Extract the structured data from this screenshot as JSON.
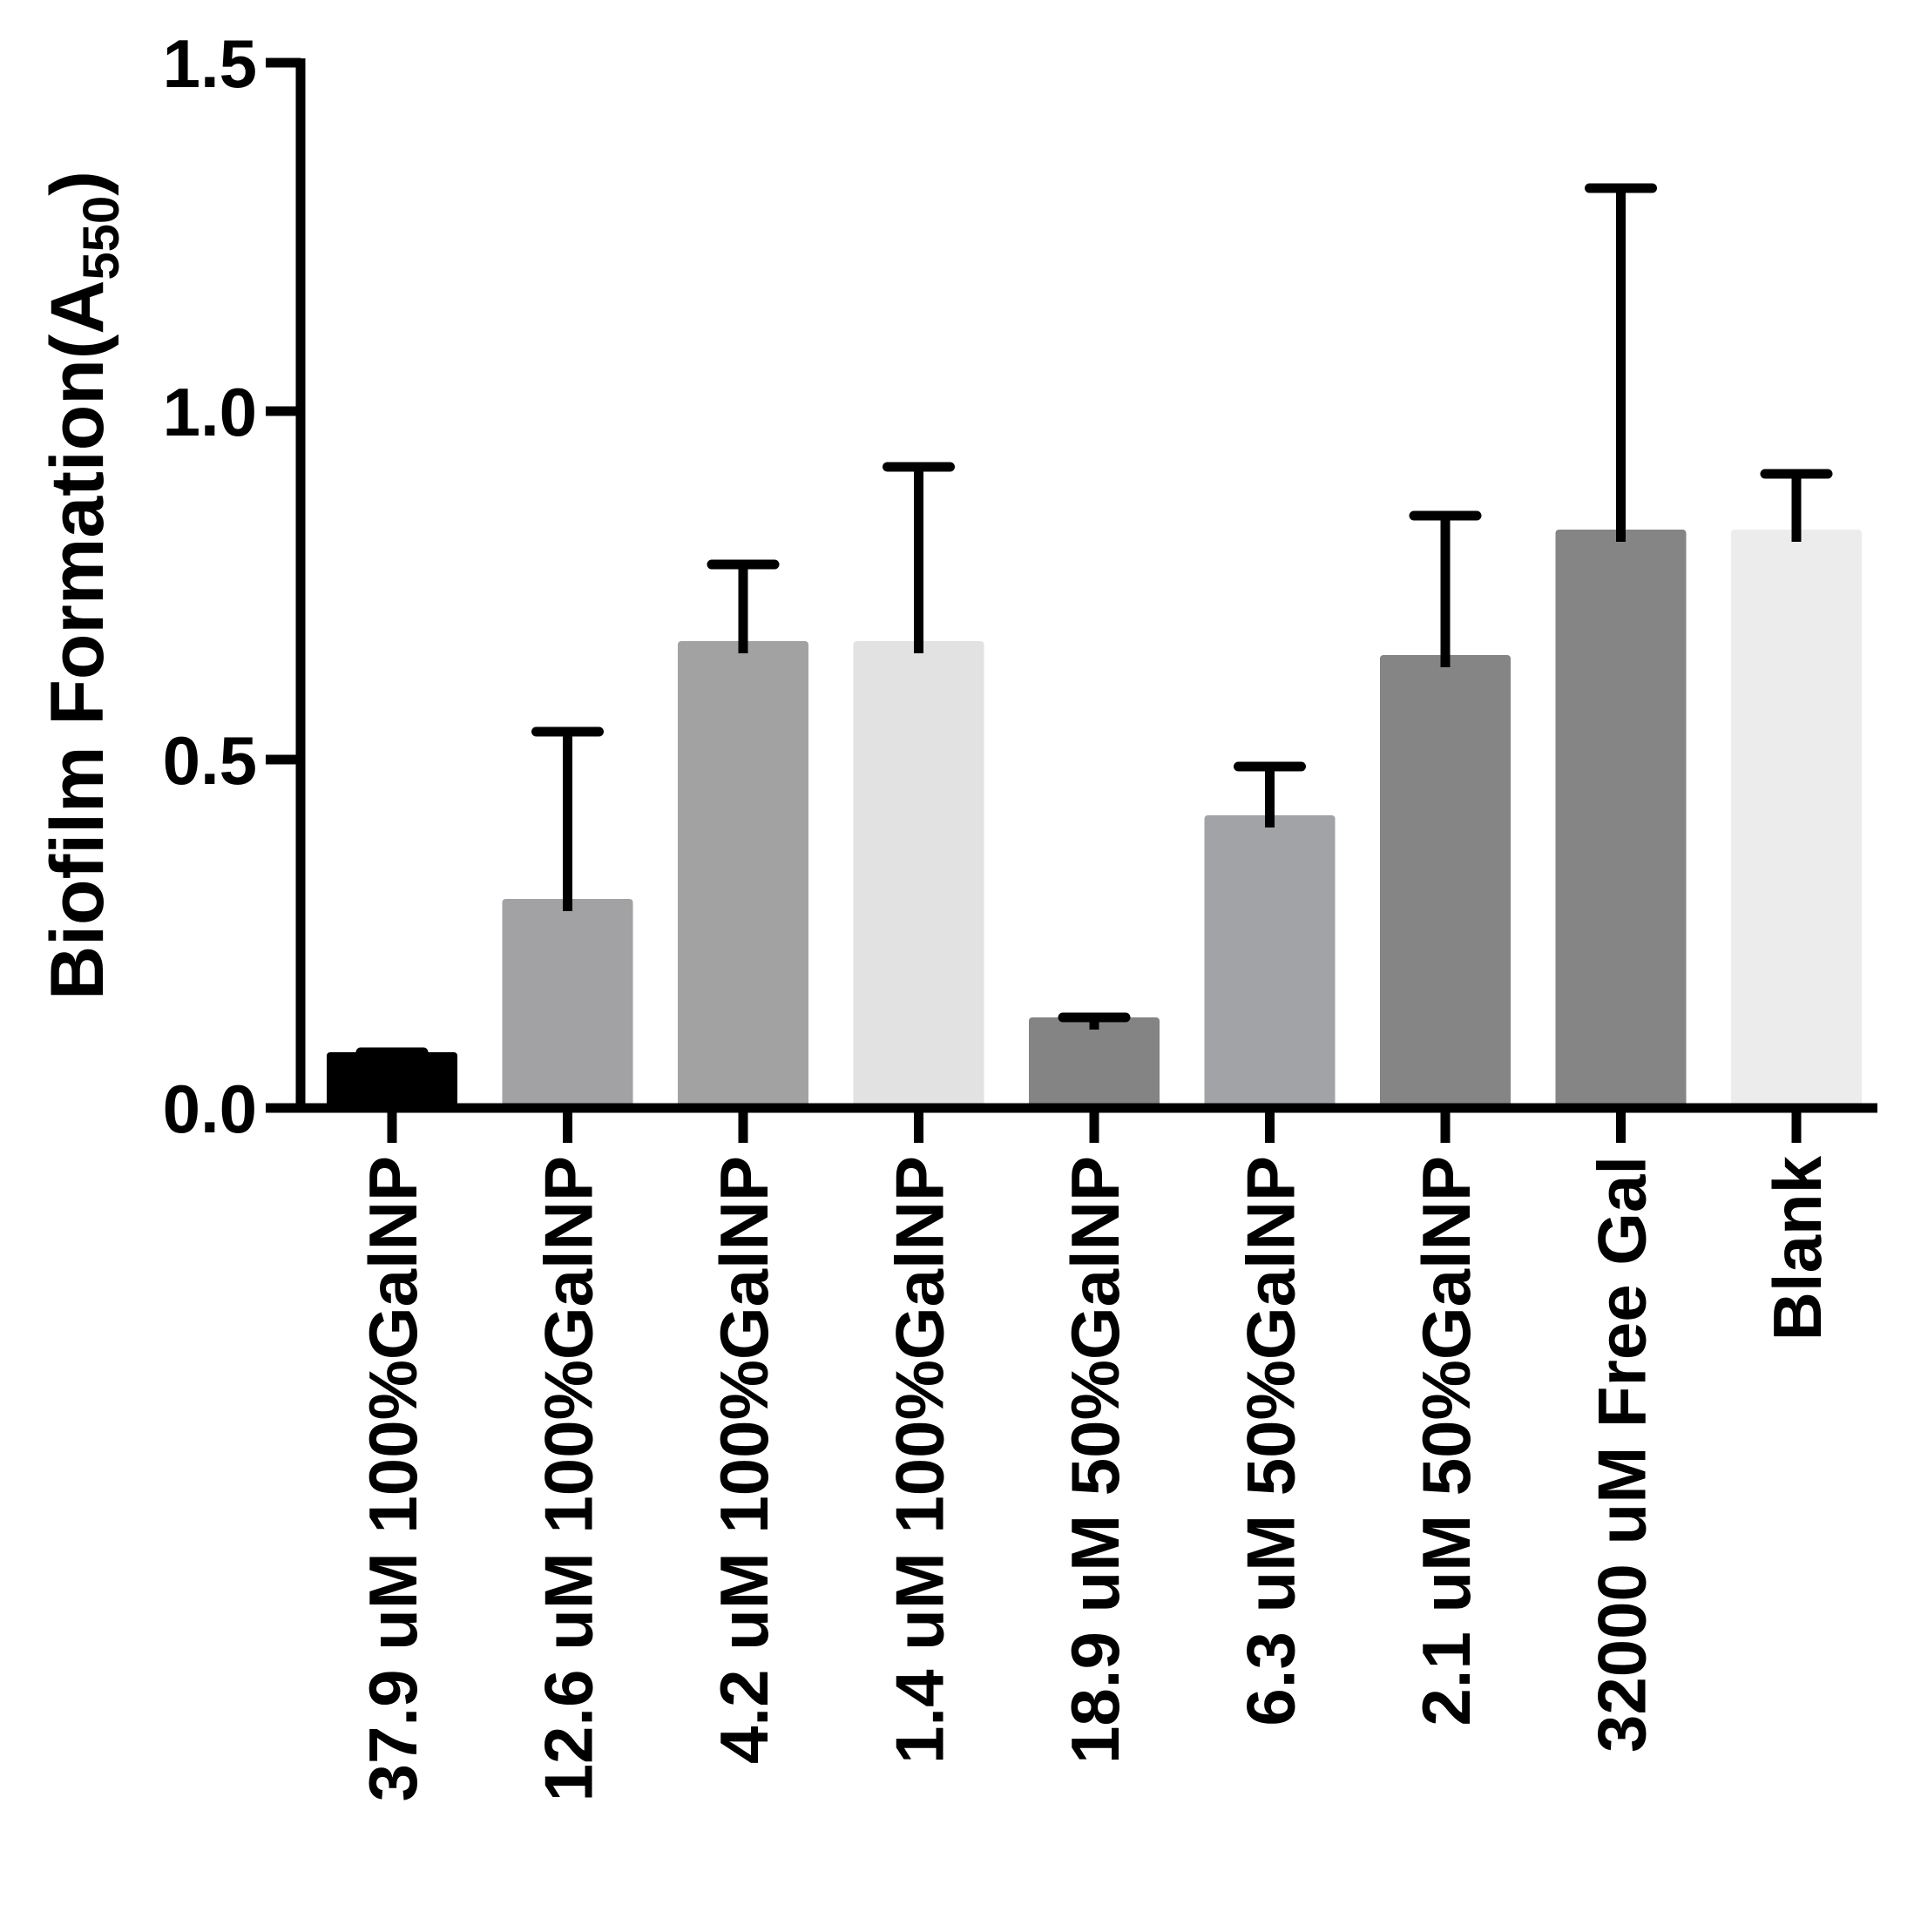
{
  "chart_data": {
    "type": "bar",
    "title": "",
    "ylabel": "Biofilm Formation(A",
    "ylabel_subscript": "550",
    "ylabel_close": ")",
    "xlabel": "",
    "ylim": [
      0,
      1.5
    ],
    "yticks": [
      0.0,
      0.5,
      1.0,
      1.5
    ],
    "ytick_labels": [
      "0.0",
      "0.5",
      "1.0",
      "1.5"
    ],
    "grid": false,
    "legend": "none",
    "categories": [
      "37.9 uM 100%GalNP",
      "12.6 uM 100%GalNP",
      "4.2 uM 100%GalNP",
      "1.4 uM 100%GalNP",
      "18.9 uM 50%GalNP",
      "6.3 uM 50%GalNP",
      "2.1 uM 50%GalNP",
      "32000 uM Free Gal",
      "Blank"
    ],
    "values": [
      0.08,
      0.3,
      0.67,
      0.67,
      0.13,
      0.42,
      0.65,
      0.83,
      0.83
    ],
    "errors": [
      0.0,
      0.24,
      0.11,
      0.25,
      0.0,
      0.07,
      0.2,
      0.49,
      0.08
    ],
    "bar_colors": [
      "#000000",
      "#a2a2a4",
      "#a2a2a2",
      "#e2e2e2",
      "#848484",
      "#a2a3a6",
      "#858585",
      "#858585",
      "#ececec"
    ]
  }
}
